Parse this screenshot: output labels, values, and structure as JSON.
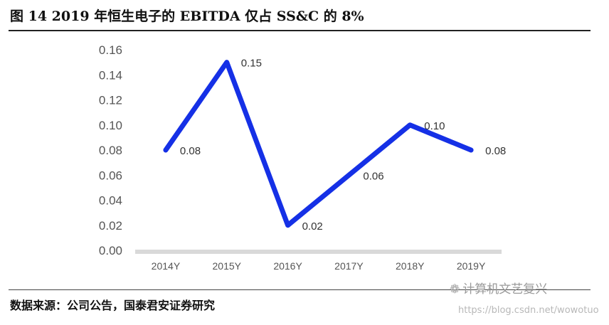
{
  "header": {
    "title": "图 14 2019 年恒生电子的 EBITDA 仅占 SS&C 的 8%"
  },
  "chart_data": {
    "type": "line",
    "categories": [
      "2014Y",
      "2015Y",
      "2016Y",
      "2017Y",
      "2018Y",
      "2019Y"
    ],
    "values": [
      0.08,
      0.15,
      0.02,
      0.06,
      0.1,
      0.08
    ],
    "data_labels": [
      "0.08",
      "0.15",
      "0.02",
      "0.06",
      "0.10",
      "0.08"
    ],
    "yticks": [
      "0.00",
      "0.02",
      "0.04",
      "0.06",
      "0.08",
      "0.10",
      "0.12",
      "0.14",
      "0.16"
    ],
    "ylim": [
      0,
      0.16
    ],
    "title": "",
    "xlabel": "",
    "ylabel": "",
    "grid": false,
    "colors": {
      "line": "#1530e6",
      "axis": "#d9d9d9",
      "label": "#333333",
      "tick": "#555555"
    }
  },
  "footer": {
    "source": "数据来源：公司公告，国泰君安证券研究"
  },
  "watermark": {
    "icon": "wechat-icon",
    "brand": "计算机文艺复兴",
    "url": "https://blog.csdn.net/wowotuo"
  }
}
